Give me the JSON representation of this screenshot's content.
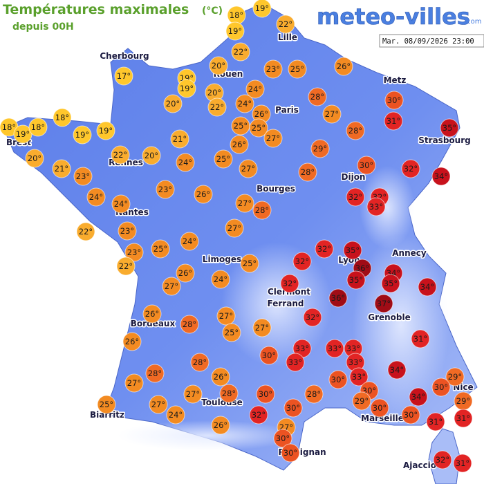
{
  "header": {
    "title": "Températures maximales",
    "unit": "(°C)",
    "subtitle": "depuis 00H",
    "logo": "meteo-villes",
    "logo_suffix": ".com",
    "timestamp": "Mar. 08/09/2026 23:00"
  },
  "cities": [
    "Cherbourg",
    "Lille",
    "Rouen",
    "Paris",
    "Metz",
    "Brest",
    "Strasbourg",
    "Rennes",
    "Dijon",
    "Bourges",
    "Nantes",
    "Annecy",
    "Lyon",
    "Limoges",
    "Clermont",
    "Ferrand",
    "Grenoble",
    "Bordeaux",
    "Toulouse",
    "Nice",
    "Marseille",
    "Biarritz",
    "Perpignan",
    "Ajaccio"
  ],
  "readings": [
    {
      "value": 18,
      "label": "18°"
    },
    {
      "value": 19,
      "label": "19°"
    },
    {
      "value": 19,
      "label": "19°"
    },
    {
      "value": 22,
      "label": "22°"
    },
    {
      "value": 22,
      "label": "22°"
    },
    {
      "value": 17,
      "label": "17°"
    },
    {
      "value": 20,
      "label": "20°"
    },
    {
      "value": 19,
      "label": "19°"
    },
    {
      "value": 19,
      "label": "19°"
    },
    {
      "value": 23,
      "label": "23°"
    },
    {
      "value": 25,
      "label": "25°"
    },
    {
      "value": 26,
      "label": "26°"
    },
    {
      "value": 20,
      "label": "20°"
    },
    {
      "value": 24,
      "label": "24°"
    },
    {
      "value": 20,
      "label": "20°"
    },
    {
      "value": 22,
      "label": "22°"
    },
    {
      "value": 24,
      "label": "24°"
    },
    {
      "value": 28,
      "label": "28°"
    },
    {
      "value": 26,
      "label": "26°"
    },
    {
      "value": 30,
      "label": "30°"
    },
    {
      "value": 18,
      "label": "18°"
    },
    {
      "value": 18,
      "label": "18°"
    },
    {
      "value": 19,
      "label": "19°"
    },
    {
      "value": 18,
      "label": "18°"
    },
    {
      "value": 19,
      "label": "19°"
    },
    {
      "value": 19,
      "label": "19°"
    },
    {
      "value": 27,
      "label": "27°"
    },
    {
      "value": 31,
      "label": "31°"
    },
    {
      "value": 35,
      "label": "35°"
    },
    {
      "value": 25,
      "label": "25°"
    },
    {
      "value": 25,
      "label": "25°"
    },
    {
      "value": 27,
      "label": "27°"
    },
    {
      "value": 21,
      "label": "21°"
    },
    {
      "value": 28,
      "label": "28°"
    },
    {
      "value": 20,
      "label": "20°"
    },
    {
      "value": 22,
      "label": "22°"
    },
    {
      "value": 20,
      "label": "20°"
    },
    {
      "value": 26,
      "label": "26°"
    },
    {
      "value": 25,
      "label": "25°"
    },
    {
      "value": 29,
      "label": "29°"
    },
    {
      "value": 24,
      "label": "24°"
    },
    {
      "value": 21,
      "label": "21°"
    },
    {
      "value": 27,
      "label": "27°"
    },
    {
      "value": 30,
      "label": "30°"
    },
    {
      "value": 23,
      "label": "23°"
    },
    {
      "value": 32,
      "label": "32°"
    },
    {
      "value": 34,
      "label": "34°"
    },
    {
      "value": 28,
      "label": "28°"
    },
    {
      "value": 23,
      "label": "23°"
    },
    {
      "value": 26,
      "label": "26°"
    },
    {
      "value": 32,
      "label": "32°"
    },
    {
      "value": 32,
      "label": "32°"
    },
    {
      "value": 24,
      "label": "24°"
    },
    {
      "value": 33,
      "label": "33°"
    },
    {
      "value": 24,
      "label": "24°"
    },
    {
      "value": 27,
      "label": "27°"
    },
    {
      "value": 28,
      "label": "28°"
    },
    {
      "value": 22,
      "label": "22°"
    },
    {
      "value": 23,
      "label": "23°"
    },
    {
      "value": 27,
      "label": "27°"
    },
    {
      "value": 24,
      "label": "24°"
    },
    {
      "value": 32,
      "label": "32°"
    },
    {
      "value": 35,
      "label": "35°"
    },
    {
      "value": 23,
      "label": "23°"
    },
    {
      "value": 25,
      "label": "25°"
    },
    {
      "value": 22,
      "label": "22°"
    },
    {
      "value": 25,
      "label": "25°"
    },
    {
      "value": 32,
      "label": "32°"
    },
    {
      "value": 36,
      "label": "36°"
    },
    {
      "value": 34,
      "label": "34°"
    },
    {
      "value": 26,
      "label": "26°"
    },
    {
      "value": 24,
      "label": "24°"
    },
    {
      "value": 35,
      "label": "35°"
    },
    {
      "value": 35,
      "label": "35°"
    },
    {
      "value": 34,
      "label": "34°"
    },
    {
      "value": 27,
      "label": "27°"
    },
    {
      "value": 32,
      "label": "32°"
    },
    {
      "value": 36,
      "label": "36°"
    },
    {
      "value": 37,
      "label": "37°"
    },
    {
      "value": 26,
      "label": "26°"
    },
    {
      "value": 27,
      "label": "27°"
    },
    {
      "value": 32,
      "label": "32°"
    },
    {
      "value": 28,
      "label": "28°"
    },
    {
      "value": 27,
      "label": "27°"
    },
    {
      "value": 25,
      "label": "25°"
    },
    {
      "value": 31,
      "label": "31°"
    },
    {
      "value": 26,
      "label": "26°"
    },
    {
      "value": 33,
      "label": "33°"
    },
    {
      "value": 33,
      "label": "33°"
    },
    {
      "value": 33,
      "label": "33°"
    },
    {
      "value": 30,
      "label": "30°"
    },
    {
      "value": 33,
      "label": "33°"
    },
    {
      "value": 33,
      "label": "33°"
    },
    {
      "value": 28,
      "label": "28°"
    },
    {
      "value": 34,
      "label": "34°"
    },
    {
      "value": 26,
      "label": "26°"
    },
    {
      "value": 28,
      "label": "28°"
    },
    {
      "value": 33,
      "label": "33°"
    },
    {
      "value": 30,
      "label": "30°"
    },
    {
      "value": 27,
      "label": "27°"
    },
    {
      "value": 29,
      "label": "29°"
    },
    {
      "value": 30,
      "label": "30°"
    },
    {
      "value": 30,
      "label": "30°"
    },
    {
      "value": 28,
      "label": "28°"
    },
    {
      "value": 28,
      "label": "28°"
    },
    {
      "value": 30,
      "label": "30°"
    },
    {
      "value": 29,
      "label": "29°"
    },
    {
      "value": 34,
      "label": "34°"
    },
    {
      "value": 29,
      "label": "29°"
    },
    {
      "value": 25,
      "label": "25°"
    },
    {
      "value": 27,
      "label": "27°"
    },
    {
      "value": 27,
      "label": "27°"
    },
    {
      "value": 30,
      "label": "30°"
    },
    {
      "value": 30,
      "label": "30°"
    },
    {
      "value": 30,
      "label": "30°"
    },
    {
      "value": 32,
      "label": "32°"
    },
    {
      "value": 24,
      "label": "24°"
    },
    {
      "value": 31,
      "label": "31°"
    },
    {
      "value": 31,
      "label": "31°"
    },
    {
      "value": 26,
      "label": "26°"
    },
    {
      "value": 27,
      "label": "27°"
    },
    {
      "value": 30,
      "label": "30°"
    },
    {
      "value": 30,
      "label": "30°"
    },
    {
      "value": 32,
      "label": "32°"
    },
    {
      "value": 31,
      "label": "31°"
    }
  ]
}
